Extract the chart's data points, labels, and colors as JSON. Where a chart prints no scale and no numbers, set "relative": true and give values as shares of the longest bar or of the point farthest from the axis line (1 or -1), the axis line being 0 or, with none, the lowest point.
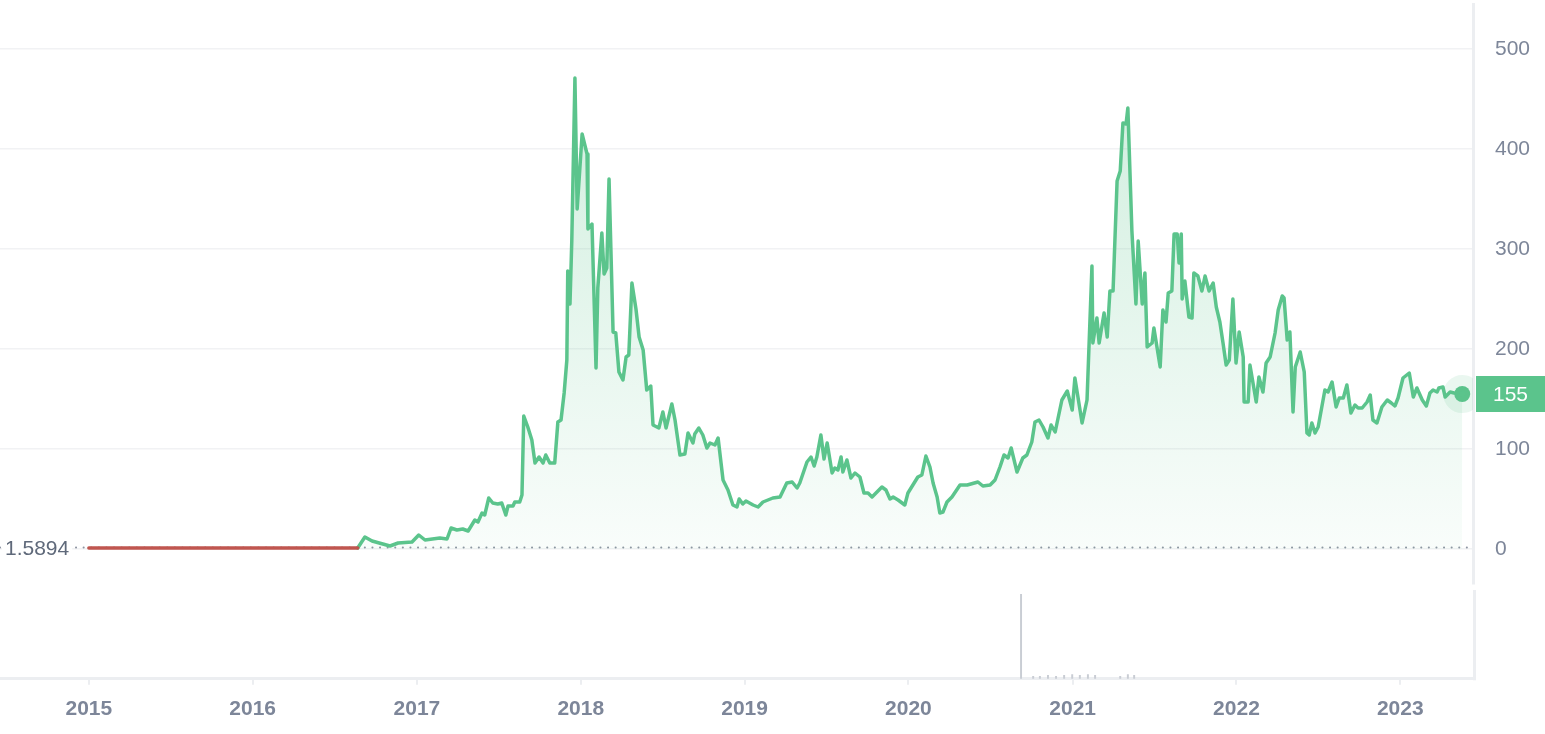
{
  "chart_data": [
    {
      "type": "area",
      "grid": "y",
      "tick_labels": "y",
      "xlim": [
        "2014-06-17",
        "2023-06-12"
      ],
      "ylim": [
        -35,
        545
      ],
      "yticks": [
        0,
        100,
        200,
        300,
        400,
        500
      ],
      "ref_lines": [
        {
          "axis": "y",
          "value": 1.5894,
          "label": "1.5894",
          "line_style": "dotted",
          "color": "#8e95a2"
        }
      ],
      "series": [
        {
          "type": "line",
          "color": "#c0564f",
          "x": [
            "2015-01-01",
            "2015-04-01",
            "2015-07-01",
            "2015-10-01",
            "2016-01-01",
            "2016-04-01",
            "2016-07-01",
            "2016-08-22"
          ],
          "values": [
            1,
            1,
            1,
            1,
            1,
            1,
            1,
            1
          ]
        },
        {
          "color": "#5bc48c",
          "x": [
            "2016-08-22",
            "2016-09-07",
            "2016-09-23",
            "2016-11-02",
            "2016-11-20",
            "2016-12-21",
            "2017-01-05",
            "2017-01-19",
            "2017-02-21",
            "2017-03-09",
            "2017-03-18",
            "2017-03-31",
            "2017-04-13",
            "2017-04-25",
            "2017-05-10",
            "2017-05-17",
            "2017-05-26",
            "2017-06-01",
            "2017-06-10",
            "2017-06-19",
            "2017-06-30",
            "2017-07-09",
            "2017-07-18",
            "2017-07-23",
            "2017-08-03",
            "2017-08-07",
            "2017-08-18",
            "2017-08-23",
            "2017-08-27",
            "2017-09-05",
            "2017-09-14",
            "2017-09-21",
            "2017-09-30",
            "2017-10-09",
            "2017-10-15",
            "2017-10-24",
            "2017-11-04",
            "2017-11-11",
            "2017-11-18",
            "2017-11-25",
            "2017-12-01",
            "2017-12-03",
            "2017-12-08",
            "2017-12-12",
            "2017-12-19",
            "2017-12-24",
            "2018-01-04",
            "2018-01-15",
            "2018-01-17",
            "2018-01-26",
            "2018-02-04",
            "2018-02-08",
            "2018-02-17",
            "2018-02-22",
            "2018-02-28",
            "2018-03-05",
            "2018-03-14",
            "2018-03-20",
            "2018-03-27",
            "2018-04-05",
            "2018-04-12",
            "2018-04-18",
            "2018-04-25",
            "2018-05-04",
            "2018-05-11",
            "2018-05-20",
            "2018-05-28",
            "2018-06-06",
            "2018-06-11",
            "2018-06-24",
            "2018-07-03",
            "2018-07-10",
            "2018-07-23",
            "2018-07-30",
            "2018-08-10",
            "2018-08-21",
            "2018-08-28",
            "2018-09-08",
            "2018-09-12",
            "2018-09-21",
            "2018-09-30",
            "2018-10-09",
            "2018-10-16",
            "2018-10-27",
            "2018-11-03",
            "2018-11-14",
            "2018-11-25",
            "2018-12-06",
            "2018-12-15",
            "2018-12-20",
            "2018-12-28",
            "2019-01-04",
            "2019-01-20",
            "2019-01-31",
            "2019-02-11",
            "2019-03-05",
            "2019-03-21",
            "2019-04-05",
            "2019-04-17",
            "2019-04-28",
            "2019-05-04",
            "2019-05-20",
            "2019-05-29",
            "2019-06-05",
            "2019-06-11",
            "2019-06-20",
            "2019-06-27",
            "2019-07-04",
            "2019-07-15",
            "2019-07-21",
            "2019-07-28",
            "2019-08-04",
            "2019-08-08",
            "2019-08-17",
            "2019-08-26",
            "2019-09-04",
            "2019-09-15",
            "2019-09-24",
            "2019-10-03",
            "2019-10-12",
            "2019-10-23",
            "2019-11-03",
            "2019-11-12",
            "2019-11-21",
            "2019-11-28",
            "2019-12-09",
            "2019-12-24",
            "2019-12-31",
            "2020-01-11",
            "2020-01-22",
            "2020-01-31",
            "2020-02-09",
            "2020-02-18",
            "2020-02-25",
            "2020-03-05",
            "2020-03-11",
            "2020-03-18",
            "2020-03-27",
            "2020-04-07",
            "2020-04-25",
            "2020-05-11",
            "2020-06-04",
            "2020-06-15",
            "2020-07-01",
            "2020-07-12",
            "2020-07-23",
            "2020-08-01",
            "2020-08-10",
            "2020-08-17",
            "2020-08-30",
            "2020-09-12",
            "2020-09-21",
            "2020-10-02",
            "2020-10-09",
            "2020-10-18",
            "2020-10-27",
            "2020-11-07",
            "2020-11-14",
            "2020-11-23",
            "2020-12-08",
            "2020-12-20",
            "2020-12-31",
            "2021-01-06",
            "2021-01-22",
            "2021-02-02",
            "2021-02-13",
            "2021-02-15",
            "2021-02-24",
            "2021-03-01",
            "2021-03-12",
            "2021-03-19",
            "2021-03-25",
            "2021-04-01",
            "2021-04-10",
            "2021-04-17",
            "2021-04-23",
            "2021-04-30",
            "2021-05-04",
            "2021-05-13",
            "2021-05-22",
            "2021-05-27",
            "2021-06-05",
            "2021-06-11",
            "2021-06-16",
            "2021-06-27",
            "2021-07-01",
            "2021-07-15",
            "2021-07-21",
            "2021-07-28",
            "2021-08-02",
            "2021-08-10",
            "2021-08-15",
            "2021-08-22",
            "2021-08-26",
            "2021-08-31",
            "2021-09-02",
            "2021-09-08",
            "2021-09-17",
            "2021-09-24",
            "2021-09-28",
            "2021-10-07",
            "2021-10-16",
            "2021-10-23",
            "2021-11-01",
            "2021-11-10",
            "2021-11-17",
            "2021-11-25",
            "2021-12-02",
            "2021-12-09",
            "2021-12-16",
            "2021-12-24",
            "2021-12-31",
            "2022-01-07",
            "2022-01-16",
            "2022-01-18",
            "2022-01-27",
            "2022-01-31",
            "2022-02-14",
            "2022-02-20",
            "2022-03-01",
            "2022-03-08",
            "2022-03-17",
            "2022-03-28",
            "2022-04-04",
            "2022-04-13",
            "2022-04-17",
            "2022-04-24",
            "2022-04-30",
            "2022-05-07",
            "2022-05-12",
            "2022-05-23",
            "2022-06-01",
            "2022-06-07",
            "2022-06-12",
            "2022-06-18",
            "2022-06-25",
            "2022-07-02",
            "2022-07-17",
            "2022-07-24",
            "2022-08-02",
            "2022-08-11",
            "2022-08-18",
            "2022-08-27",
            "2022-09-04",
            "2022-09-13",
            "2022-09-22",
            "2022-09-29",
            "2022-10-08",
            "2022-10-19",
            "2022-10-26",
            "2022-11-01",
            "2022-11-10",
            "2022-11-21",
            "2022-12-03",
            "2022-12-12",
            "2022-12-20",
            "2022-12-27",
            "2023-01-07",
            "2023-01-21",
            "2023-01-30",
            "2023-02-07",
            "2023-02-19",
            "2023-02-28",
            "2023-03-08",
            "2023-03-15",
            "2023-03-24",
            "2023-03-28",
            "2023-04-06",
            "2023-04-11",
            "2023-04-22",
            "2023-05-01",
            "2023-05-19"
          ],
          "values": [
            1,
            12,
            8,
            3,
            6,
            7,
            14,
            9,
            11,
            10,
            21,
            19,
            20,
            18,
            29,
            27,
            36,
            34,
            51,
            46,
            45,
            46,
            34,
            43,
            43,
            47,
            47,
            54,
            133,
            122,
            109,
            86,
            92,
            86,
            94,
            86,
            86,
            127,
            129,
            156,
            189,
            278,
            245,
            308,
            471,
            340,
            415,
            395,
            320,
            325,
            181,
            261,
            316,
            275,
            281,
            370,
            217,
            216,
            177,
            169,
            192,
            194,
            266,
            240,
            212,
            199,
            159,
            163,
            124,
            121,
            137,
            121,
            145,
            129,
            94,
            95,
            116,
            106,
            115,
            121,
            114,
            101,
            106,
            104,
            111,
            69,
            59,
            44,
            42,
            50,
            45,
            48,
            44,
            42,
            47,
            51,
            52,
            66,
            67,
            61,
            66,
            87,
            92,
            83,
            92,
            114,
            90,
            106,
            76,
            81,
            79,
            92,
            77,
            89,
            71,
            76,
            72,
            56,
            56,
            52,
            57,
            62,
            59,
            50,
            52,
            49,
            44,
            56,
            64,
            72,
            74,
            93,
            82,
            66,
            52,
            36,
            37,
            47,
            52,
            64,
            64,
            67,
            63,
            64,
            69,
            82,
            94,
            91,
            101,
            77,
            91,
            94,
            107,
            127,
            129,
            122,
            111,
            124,
            117,
            149,
            158,
            139,
            171,
            126,
            149,
            283,
            206,
            231,
            206,
            236,
            212,
            258,
            258,
            368,
            378,
            426,
            425,
            441,
            318,
            245,
            308,
            245,
            276,
            202,
            206,
            221,
            182,
            239,
            227,
            256,
            258,
            315,
            315,
            286,
            315,
            250,
            268,
            232,
            231,
            276,
            273,
            258,
            273,
            258,
            266,
            242,
            227,
            206,
            184,
            189,
            250,
            186,
            217,
            192,
            147,
            147,
            184,
            147,
            172,
            157,
            186,
            192,
            216,
            239,
            253,
            251,
            209,
            217,
            137,
            182,
            197,
            177,
            116,
            114,
            126,
            116,
            122,
            159,
            157,
            167,
            142,
            151,
            151,
            164,
            136,
            144,
            141,
            141,
            147,
            154,
            129,
            126,
            142,
            149,
            146,
            143,
            151,
            171,
            176,
            152,
            161,
            149,
            143,
            156,
            159,
            157,
            161,
            162,
            152,
            157,
            156,
            155
          ],
          "value_labels": [
            null,
            null,
            null,
            null,
            null,
            null,
            null,
            null,
            null,
            null,
            null,
            null,
            null,
            null,
            null,
            null,
            null,
            null,
            null,
            null,
            null,
            null,
            null,
            null,
            null,
            null,
            null,
            null,
            null,
            null,
            null,
            null,
            null,
            null,
            null,
            null,
            null,
            null,
            null,
            null,
            null,
            null,
            null,
            null,
            null,
            null,
            null,
            null,
            null,
            null,
            null,
            null,
            null,
            null,
            null,
            null,
            null,
            null,
            null,
            null,
            null,
            null,
            null,
            null,
            null,
            null,
            null,
            null,
            null,
            null,
            null,
            null,
            null,
            null,
            null,
            null,
            null,
            null,
            null,
            null,
            null,
            null,
            null,
            null,
            null,
            null,
            null,
            null,
            null,
            null,
            null,
            null,
            null,
            null,
            null,
            null,
            null,
            null,
            null,
            null,
            null,
            null,
            null,
            null,
            null,
            null,
            null,
            null,
            null,
            null,
            null,
            null,
            null,
            null,
            null,
            null,
            null,
            null,
            null,
            null,
            null,
            null,
            null,
            null,
            null,
            null,
            null,
            null,
            null,
            null,
            null,
            null,
            null,
            null,
            null,
            null,
            null,
            null,
            null,
            null,
            null,
            null,
            null,
            null,
            null,
            null,
            null,
            null,
            null,
            null,
            null,
            null,
            null,
            null,
            null,
            null,
            null,
            null,
            null,
            null,
            null,
            null,
            null,
            null,
            null,
            null,
            null,
            null,
            null,
            null,
            null,
            null,
            null,
            null,
            null,
            null,
            null,
            null,
            null,
            null,
            null,
            null,
            null,
            null,
            null,
            null,
            null,
            null,
            null,
            null,
            null,
            null,
            null,
            null,
            null,
            null,
            null,
            null,
            null,
            null,
            null,
            null,
            null,
            null,
            null,
            null,
            null,
            null,
            null,
            null,
            null,
            null,
            null,
            null,
            null,
            null,
            null,
            null,
            null,
            null,
            null,
            null,
            null,
            null,
            null,
            null,
            null,
            null,
            null,
            null,
            null,
            null,
            null,
            null,
            null,
            null,
            null,
            null,
            null,
            null,
            null,
            null,
            null,
            null,
            null,
            null,
            null,
            null,
            null,
            null,
            null,
            null,
            null,
            null,
            null,
            null,
            null,
            null,
            null,
            null,
            null,
            null,
            null,
            null,
            null,
            null,
            null,
            null,
            null,
            null,
            null,
            "155"
          ]
        }
      ]
    },
    {
      "type": "bar",
      "relative": true,
      "tick_labels": "x",
      "color": "#c9cdd4",
      "xlim": [
        "2014-06-17",
        "2023-06-12"
      ],
      "xticks": [
        "2015",
        "2016",
        "2017",
        "2018",
        "2019",
        "2020",
        "2021",
        "2022",
        "2023"
      ],
      "x": [
        "2020-09-08",
        "2020-10-05",
        "2020-10-20",
        "2020-11-07",
        "2020-11-25",
        "2020-12-13",
        "2020-12-31",
        "2021-01-17",
        "2021-02-04",
        "2021-02-20",
        "2021-04-17",
        "2021-05-04",
        "2021-05-18"
      ],
      "values": [
        1,
        0.03,
        0.03,
        0.04,
        0.03,
        0.04,
        0.05,
        0.04,
        0.05,
        0.04,
        0.03,
        0.05,
        0.04
      ]
    }
  ]
}
